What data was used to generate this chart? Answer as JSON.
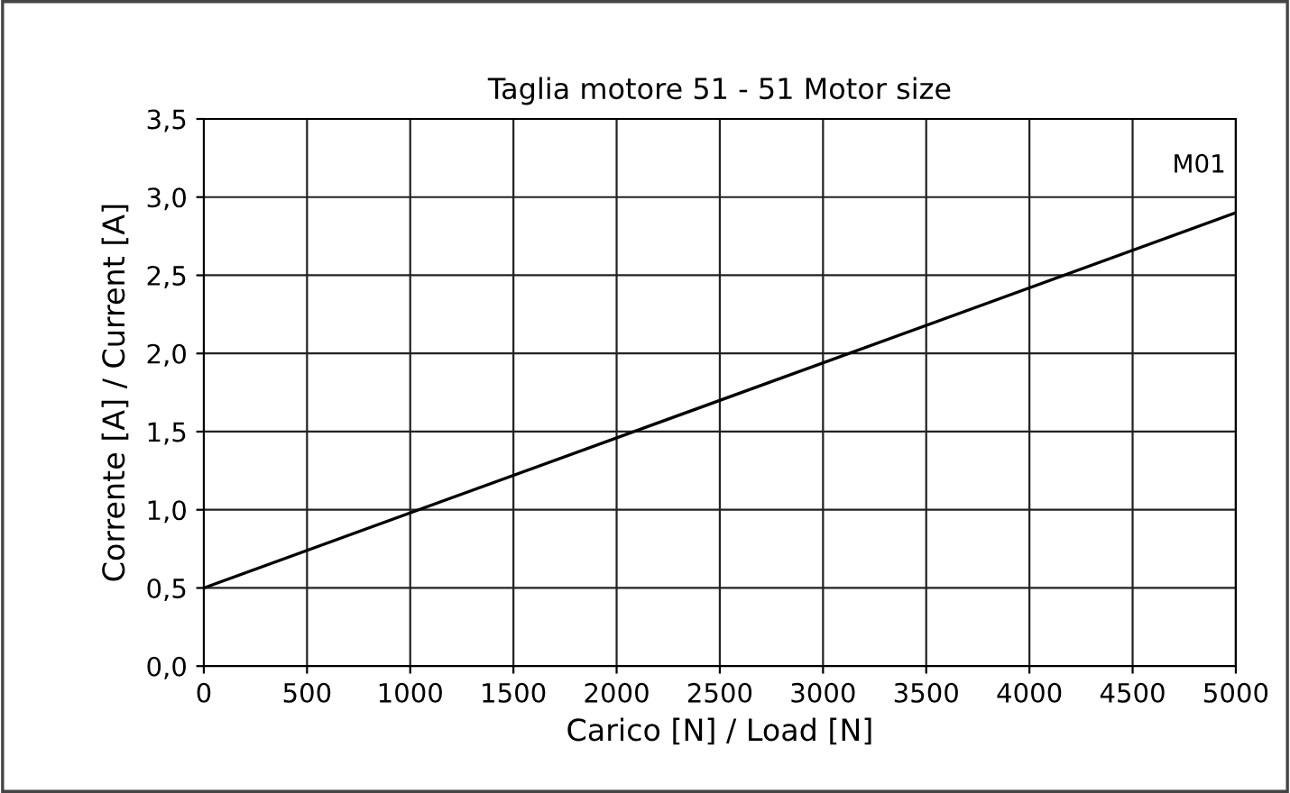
{
  "chart_data": {
    "type": "line",
    "title": "Taglia motore 51 - 51 Motor size",
    "xlabel": "Carico [N] / Load [N]",
    "ylabel": "Corrente [A] / Current [A]",
    "x": [
      0,
      5000
    ],
    "series": [
      {
        "name": "M01",
        "color": "#000000",
        "values": [
          0.5,
          2.9
        ]
      }
    ],
    "xlim": [
      0,
      5000
    ],
    "xticks": [
      0,
      500,
      1000,
      1500,
      2000,
      2500,
      3000,
      3500,
      4000,
      4500,
      5000
    ],
    "ylim": [
      0,
      3.5
    ],
    "yticks": [
      {
        "value": 0,
        "label": "0,0"
      },
      {
        "value": 0.5,
        "label": "0,5"
      },
      {
        "value": 1,
        "label": "1,0"
      },
      {
        "value": 1.5,
        "label": "1,5"
      },
      {
        "value": 2,
        "label": "2,0"
      },
      {
        "value": 2.5,
        "label": "2,5"
      },
      {
        "value": 3,
        "label": "3,0"
      },
      {
        "value": 3.5,
        "label": "3,5"
      }
    ],
    "grid": true,
    "legend": false,
    "marker": "none",
    "line_style": "solid"
  }
}
